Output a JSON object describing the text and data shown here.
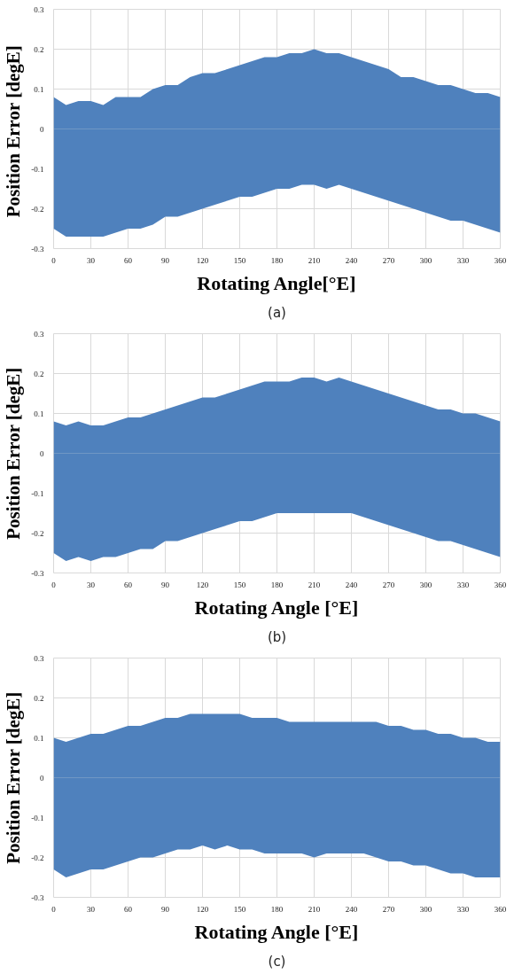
{
  "chart_data": [
    {
      "type": "area",
      "ylabel": "Position Error  [degE]",
      "xlabel": "Rotating Angle[°E]",
      "annotations": [
        "(a)"
      ],
      "xlim": [
        0,
        360
      ],
      "ylim": [
        -0.3,
        0.3
      ],
      "xticks": [
        0,
        30,
        60,
        90,
        120,
        150,
        180,
        210,
        240,
        270,
        300,
        330,
        360
      ],
      "yticks": [
        -0.3,
        -0.2,
        -0.1,
        0,
        0.1,
        0.2,
        0.3
      ],
      "grid": true,
      "x": [
        0,
        10,
        20,
        30,
        40,
        50,
        60,
        70,
        80,
        90,
        100,
        110,
        120,
        130,
        140,
        150,
        160,
        170,
        180,
        190,
        200,
        210,
        220,
        230,
        240,
        250,
        260,
        270,
        280,
        290,
        300,
        310,
        320,
        330,
        340,
        350,
        360
      ],
      "series": [
        {
          "color": "#4f81bd",
          "values": [
            0.08,
            0.06,
            0.07,
            0.07,
            0.06,
            0.08,
            0.08,
            0.08,
            0.1,
            0.11,
            0.11,
            0.13,
            0.14,
            0.14,
            0.15,
            0.16,
            0.17,
            0.18,
            0.18,
            0.19,
            0.19,
            0.2,
            0.19,
            0.19,
            0.18,
            0.17,
            0.16,
            0.15,
            0.13,
            0.13,
            0.12,
            0.11,
            0.11,
            0.1,
            0.09,
            0.09,
            0.08
          ]
        },
        {
          "color": "#4f81bd",
          "values": [
            -0.25,
            -0.27,
            -0.27,
            -0.27,
            -0.27,
            -0.26,
            -0.25,
            -0.25,
            -0.24,
            -0.22,
            -0.22,
            -0.21,
            -0.2,
            -0.19,
            -0.18,
            -0.17,
            -0.17,
            -0.16,
            -0.15,
            -0.15,
            -0.14,
            -0.14,
            -0.15,
            -0.14,
            -0.15,
            -0.16,
            -0.17,
            -0.18,
            -0.19,
            -0.2,
            -0.21,
            -0.22,
            -0.23,
            -0.23,
            -0.24,
            -0.25,
            -0.26
          ]
        }
      ]
    },
    {
      "type": "area",
      "ylabel": "Position Error [degE]",
      "xlabel": "Rotating Angle [°E]",
      "annotations": [
        "(b)"
      ],
      "xlim": [
        0,
        360
      ],
      "ylim": [
        -0.3,
        0.3
      ],
      "xticks": [
        0,
        30,
        60,
        90,
        120,
        150,
        180,
        210,
        240,
        270,
        300,
        330,
        360
      ],
      "yticks": [
        -0.3,
        -0.2,
        -0.1,
        0,
        0.1,
        0.2,
        0.3
      ],
      "grid": true,
      "x": [
        0,
        10,
        20,
        30,
        40,
        50,
        60,
        70,
        80,
        90,
        100,
        110,
        120,
        130,
        140,
        150,
        160,
        170,
        180,
        190,
        200,
        210,
        220,
        230,
        240,
        250,
        260,
        270,
        280,
        290,
        300,
        310,
        320,
        330,
        340,
        350,
        360
      ],
      "series": [
        {
          "color": "#4f81bd",
          "values": [
            0.08,
            0.07,
            0.08,
            0.07,
            0.07,
            0.08,
            0.09,
            0.09,
            0.1,
            0.11,
            0.12,
            0.13,
            0.14,
            0.14,
            0.15,
            0.16,
            0.17,
            0.18,
            0.18,
            0.18,
            0.19,
            0.19,
            0.18,
            0.19,
            0.18,
            0.17,
            0.16,
            0.15,
            0.14,
            0.13,
            0.12,
            0.11,
            0.11,
            0.1,
            0.1,
            0.09,
            0.08
          ]
        },
        {
          "color": "#4f81bd",
          "values": [
            -0.25,
            -0.27,
            -0.26,
            -0.27,
            -0.26,
            -0.26,
            -0.25,
            -0.24,
            -0.24,
            -0.22,
            -0.22,
            -0.21,
            -0.2,
            -0.19,
            -0.18,
            -0.17,
            -0.17,
            -0.16,
            -0.15,
            -0.15,
            -0.15,
            -0.15,
            -0.15,
            -0.15,
            -0.15,
            -0.16,
            -0.17,
            -0.18,
            -0.19,
            -0.2,
            -0.21,
            -0.22,
            -0.22,
            -0.23,
            -0.24,
            -0.25,
            -0.26
          ]
        }
      ]
    },
    {
      "type": "area",
      "ylabel": "Position Error [degE]",
      "xlabel": "Rotating Angle [°E]",
      "annotations": [
        "(c)"
      ],
      "xlim": [
        0,
        360
      ],
      "ylim": [
        -0.3,
        0.3
      ],
      "xticks": [
        0,
        30,
        60,
        90,
        120,
        150,
        180,
        210,
        240,
        270,
        300,
        330,
        360
      ],
      "yticks": [
        -0.3,
        -0.2,
        -0.1,
        0,
        0.1,
        0.2,
        0.3
      ],
      "grid": true,
      "x": [
        0,
        10,
        20,
        30,
        40,
        50,
        60,
        70,
        80,
        90,
        100,
        110,
        120,
        130,
        140,
        150,
        160,
        170,
        180,
        190,
        200,
        210,
        220,
        230,
        240,
        250,
        260,
        270,
        280,
        290,
        300,
        310,
        320,
        330,
        340,
        350,
        360
      ],
      "series": [
        {
          "color": "#4f81bd",
          "values": [
            0.1,
            0.09,
            0.1,
            0.11,
            0.11,
            0.12,
            0.13,
            0.13,
            0.14,
            0.15,
            0.15,
            0.16,
            0.16,
            0.16,
            0.16,
            0.16,
            0.15,
            0.15,
            0.15,
            0.14,
            0.14,
            0.14,
            0.14,
            0.14,
            0.14,
            0.14,
            0.14,
            0.13,
            0.13,
            0.12,
            0.12,
            0.11,
            0.11,
            0.1,
            0.1,
            0.09,
            0.09
          ]
        },
        {
          "color": "#4f81bd",
          "values": [
            -0.23,
            -0.25,
            -0.24,
            -0.23,
            -0.23,
            -0.22,
            -0.21,
            -0.2,
            -0.2,
            -0.19,
            -0.18,
            -0.18,
            -0.17,
            -0.18,
            -0.17,
            -0.18,
            -0.18,
            -0.19,
            -0.19,
            -0.19,
            -0.19,
            -0.2,
            -0.19,
            -0.19,
            -0.19,
            -0.19,
            -0.2,
            -0.21,
            -0.21,
            -0.22,
            -0.22,
            -0.23,
            -0.24,
            -0.24,
            -0.25,
            -0.25,
            -0.25
          ]
        }
      ]
    }
  ]
}
